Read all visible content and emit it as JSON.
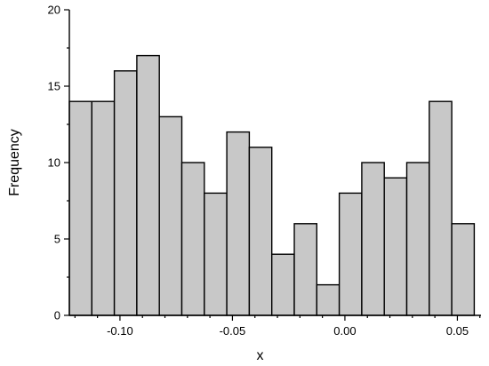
{
  "chart_data": {
    "type": "bar",
    "title": "",
    "xlabel": "x",
    "ylabel": "Frequency",
    "xlim": [
      -0.1225,
      0.0605
    ],
    "ylim": [
      0,
      20
    ],
    "bin_width": 0.01,
    "bins": [
      {
        "start": -0.1225,
        "end": -0.1125,
        "value": 14
      },
      {
        "start": -0.1125,
        "end": -0.1025,
        "value": 14
      },
      {
        "start": -0.1025,
        "end": -0.0925,
        "value": 16
      },
      {
        "start": -0.0925,
        "end": -0.0825,
        "value": 17
      },
      {
        "start": -0.0825,
        "end": -0.0725,
        "value": 13
      },
      {
        "start": -0.0725,
        "end": -0.0625,
        "value": 10
      },
      {
        "start": -0.0625,
        "end": -0.0525,
        "value": 8
      },
      {
        "start": -0.0525,
        "end": -0.0425,
        "value": 12
      },
      {
        "start": -0.0425,
        "end": -0.0325,
        "value": 11
      },
      {
        "start": -0.0325,
        "end": -0.0225,
        "value": 4
      },
      {
        "start": -0.0225,
        "end": -0.0125,
        "value": 6
      },
      {
        "start": -0.0125,
        "end": -0.0025,
        "value": 2
      },
      {
        "start": -0.0025,
        "end": 0.0075,
        "value": 8
      },
      {
        "start": 0.0075,
        "end": 0.0175,
        "value": 10
      },
      {
        "start": 0.0175,
        "end": 0.0275,
        "value": 9
      },
      {
        "start": 0.0275,
        "end": 0.0375,
        "value": 10
      },
      {
        "start": 0.0375,
        "end": 0.0475,
        "value": 14
      },
      {
        "start": 0.0475,
        "end": 0.0575,
        "value": 6
      }
    ],
    "x_ticks": [
      {
        "value": -0.1,
        "label": "-0.10"
      },
      {
        "value": -0.05,
        "label": "-0.05"
      },
      {
        "value": 0.0,
        "label": "0.00"
      },
      {
        "value": 0.05,
        "label": "0.05"
      }
    ],
    "y_ticks": [
      {
        "value": 0,
        "label": "0"
      },
      {
        "value": 5,
        "label": "5"
      },
      {
        "value": 10,
        "label": "10"
      },
      {
        "value": 15,
        "label": "15"
      },
      {
        "value": 20,
        "label": "20"
      }
    ],
    "grid": false,
    "legend": "none",
    "bar_fill": "#c8c8c8",
    "bar_stroke": "#000000"
  }
}
